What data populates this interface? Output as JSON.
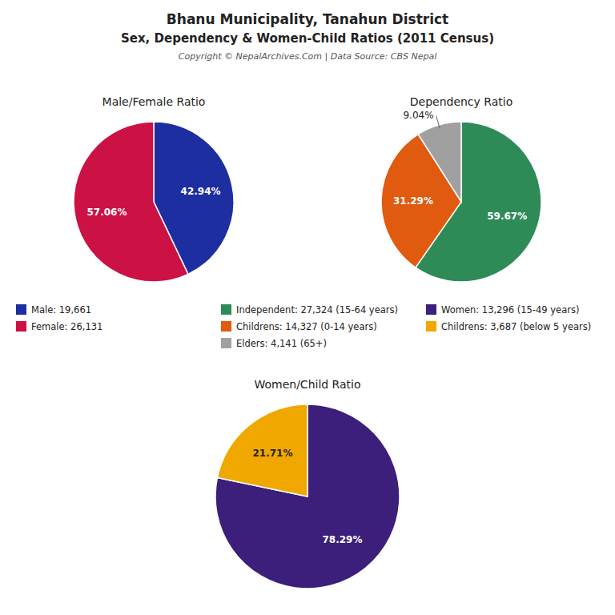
{
  "title": "Bhanu Municipality, Tanahun District",
  "subtitle": "Sex, Dependency & Women-Child Ratios (2011 Census)",
  "annotations": [
    "Copyright © NepalArchives.Com | Data Source: CBS Nepal"
  ],
  "chart_data": [
    {
      "type": "pie",
      "title": "Male/Female Ratio",
      "categories": [
        "Male: 19,661",
        "Female: 26,131"
      ],
      "values": [
        42.94,
        57.06
      ],
      "value_labels": [
        "42.94%",
        "57.06%"
      ],
      "colors": [
        "#1c2ea0",
        "#cc1144"
      ],
      "data_labels": true,
      "legend": "bottom"
    },
    {
      "type": "pie",
      "title": "Dependency Ratio",
      "categories": [
        "Independent: 27,324 (15-64 years)",
        "Childrens: 14,327 (0-14 years)",
        "Elders: 4,141 (65+)"
      ],
      "values": [
        59.67,
        31.29,
        9.04
      ],
      "value_labels": [
        "59.67%",
        "31.29%",
        "9.04%"
      ],
      "colors": [
        "#2e8b57",
        "#e05a10",
        "#a0a0a0"
      ],
      "data_labels": true,
      "legend": "bottom"
    },
    {
      "type": "pie",
      "title": "Women/Child Ratio",
      "categories": [
        "Women: 13,296 (15-49 years)",
        "Childrens: 3,687 (below 5 years)"
      ],
      "values": [
        78.29,
        21.71
      ],
      "value_labels": [
        "78.29%",
        "21.71%"
      ],
      "colors": [
        "#3b1f7a",
        "#f0a800"
      ],
      "data_labels": true,
      "legend": "bottom"
    }
  ]
}
